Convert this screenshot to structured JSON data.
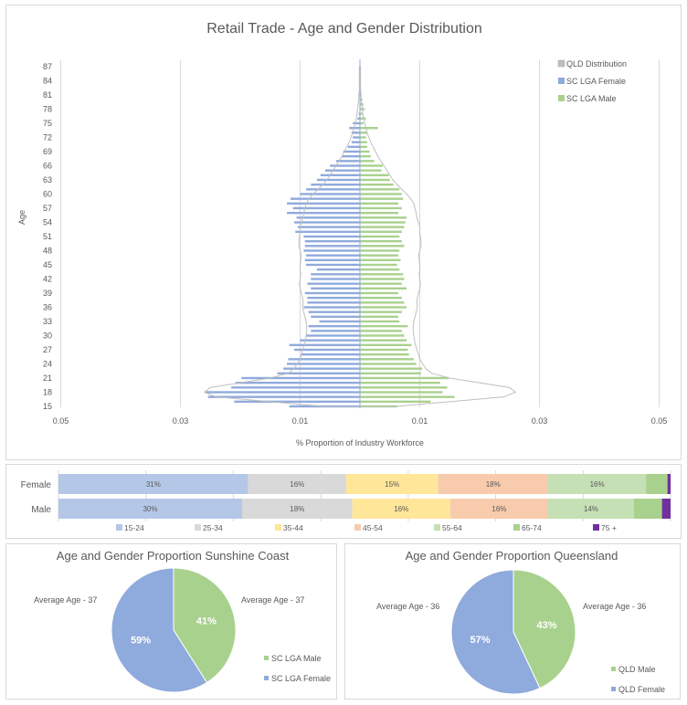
{
  "chart_data": [
    {
      "type": "bar",
      "subtype": "population-pyramid",
      "title": "Retail Trade - Age and Gender Distribution",
      "xlabel": "% Proportion of Industry Workforce",
      "ylabel": "Age",
      "x_tick_labels": [
        "0.05",
        "0.03",
        "0.01",
        "0.01",
        "0.03",
        "0.05"
      ],
      "x_ticks": [
        -0.05,
        -0.03,
        -0.01,
        0.01,
        0.03,
        0.05
      ],
      "xlim": [
        -0.05,
        0.05
      ],
      "y_tick_labels": [
        "15",
        "18",
        "21",
        "24",
        "27",
        "30",
        "33",
        "36",
        "39",
        "42",
        "45",
        "48",
        "51",
        "54",
        "57",
        "60",
        "63",
        "66",
        "69",
        "72",
        "75",
        "78",
        "81",
        "84",
        "87"
      ],
      "legend": [
        {
          "label": "QLD Distribution",
          "color": "#bfbfbf"
        },
        {
          "label": "SC LGA Female",
          "color": "#8faadc"
        },
        {
          "label": "SC LGA Male",
          "color": "#a9d18e"
        }
      ],
      "legend_position": "top-right",
      "ages": [
        15,
        16,
        17,
        18,
        19,
        20,
        21,
        22,
        23,
        24,
        25,
        26,
        27,
        28,
        29,
        30,
        31,
        32,
        33,
        34,
        35,
        36,
        37,
        38,
        39,
        40,
        41,
        42,
        43,
        44,
        45,
        46,
        47,
        48,
        49,
        50,
        51,
        52,
        53,
        54,
        55,
        56,
        57,
        58,
        59,
        60,
        61,
        62,
        63,
        64,
        65,
        66,
        67,
        68,
        69,
        70,
        71,
        72,
        73,
        74,
        75,
        76,
        77,
        78,
        79,
        80,
        81,
        82,
        83,
        84,
        85,
        86,
        87
      ],
      "series": [
        {
          "name": "SC LGA Female",
          "values": [
            0.0118,
            0.021,
            0.0254,
            0.0258,
            0.0215,
            0.0208,
            0.0198,
            0.0138,
            0.0128,
            0.0122,
            0.012,
            0.0098,
            0.011,
            0.0118,
            0.01,
            0.009,
            0.0082,
            0.0086,
            0.0068,
            0.0082,
            0.0086,
            0.0094,
            0.0088,
            0.0088,
            0.0092,
            0.0082,
            0.0088,
            0.0082,
            0.0082,
            0.0072,
            0.009,
            0.0092,
            0.009,
            0.0094,
            0.0092,
            0.0092,
            0.0094,
            0.0108,
            0.0104,
            0.011,
            0.0106,
            0.0122,
            0.0112,
            0.0122,
            0.0116,
            0.01,
            0.009,
            0.0082,
            0.0072,
            0.0066,
            0.0058,
            0.005,
            0.004,
            0.003,
            0.0028,
            0.002,
            0.0014,
            0.0012,
            0.0014,
            0.0018,
            0.0012,
            0.0004,
            0.0002,
            0,
            0,
            0,
            0,
            0,
            0,
            0,
            0,
            0,
            0
          ]
        },
        {
          "name": "SC LGA Male",
          "values": [
            0.0062,
            0.0118,
            0.0158,
            0.0138,
            0.0146,
            0.0134,
            0.0148,
            0.0102,
            0.0104,
            0.0094,
            0.009,
            0.0082,
            0.008,
            0.0086,
            0.0078,
            0.0074,
            0.007,
            0.008,
            0.0066,
            0.0064,
            0.007,
            0.0078,
            0.0074,
            0.007,
            0.0064,
            0.0078,
            0.007,
            0.0074,
            0.0072,
            0.0066,
            0.0062,
            0.0068,
            0.0064,
            0.0066,
            0.0074,
            0.007,
            0.0066,
            0.007,
            0.0074,
            0.0076,
            0.0078,
            0.0064,
            0.007,
            0.0064,
            0.0072,
            0.007,
            0.0066,
            0.0056,
            0.005,
            0.0048,
            0.0036,
            0.0038,
            0.0024,
            0.0018,
            0.0016,
            0.0012,
            0.0012,
            0.001,
            0.0012,
            0.003,
            0.0006,
            0.001,
            0.0004,
            0.0008,
            0.0006,
            0.0004,
            0.0002,
            0.0002,
            0,
            0,
            0,
            0,
            0
          ]
        },
        {
          "name": "QLD Distribution",
          "values": [
            0.006,
            0.015,
            0.024,
            0.026,
            0.025,
            0.02,
            0.015,
            0.012,
            0.011,
            0.0105,
            0.01,
            0.0098,
            0.0095,
            0.0093,
            0.0091,
            0.009,
            0.0089,
            0.0089,
            0.009,
            0.0092,
            0.0094,
            0.0096,
            0.0095,
            0.0096,
            0.0098,
            0.01,
            0.0101,
            0.01,
            0.0099,
            0.01,
            0.01,
            0.0099,
            0.0098,
            0.01,
            0.0102,
            0.0102,
            0.0101,
            0.01,
            0.01,
            0.0098,
            0.0095,
            0.0094,
            0.0092,
            0.009,
            0.0085,
            0.0078,
            0.007,
            0.0062,
            0.0055,
            0.005,
            0.0045,
            0.004,
            0.0035,
            0.003,
            0.0026,
            0.0022,
            0.0018,
            0.0015,
            0.0012,
            0.001,
            0.0008,
            0.0006,
            0.0005,
            0.0004,
            0.0003,
            0.0002,
            0.0002,
            0.0001,
            0.0001,
            0.0001,
            0.0001,
            0.0001,
            0.0001
          ]
        }
      ]
    },
    {
      "type": "bar",
      "subtype": "stacked-100-horizontal",
      "categories": [
        "Female",
        "Male"
      ],
      "legend": [
        {
          "label": "15-24",
          "color": "#b4c7e7"
        },
        {
          "label": "25-34",
          "color": "#d9d9d9"
        },
        {
          "label": "35-44",
          "color": "#ffe699"
        },
        {
          "label": "45-54",
          "color": "#f8cbad"
        },
        {
          "label": "55-64",
          "color": "#c5e0b4"
        },
        {
          "label": "65-74",
          "color": "#a9d18e"
        },
        {
          "label": "75 +",
          "color": "#7030a0"
        }
      ],
      "legend_position": "bottom",
      "series": [
        {
          "name": "15-24",
          "values": [
            31,
            30
          ],
          "labels": [
            "31%",
            "30%"
          ]
        },
        {
          "name": "25-34",
          "values": [
            16,
            18
          ],
          "labels": [
            "16%",
            "18%"
          ]
        },
        {
          "name": "35-44",
          "values": [
            15,
            16
          ],
          "labels": [
            "15%",
            "16%"
          ]
        },
        {
          "name": "45-54",
          "values": [
            18,
            16
          ],
          "labels": [
            "18%",
            "16%"
          ]
        },
        {
          "name": "55-64",
          "values": [
            16,
            14
          ],
          "labels": [
            "16%",
            "14%"
          ]
        },
        {
          "name": "65-74",
          "values": [
            3.5,
            4.6
          ],
          "labels": [
            "",
            ""
          ]
        },
        {
          "name": "75 +",
          "values": [
            0.5,
            1.4
          ],
          "labels": [
            "",
            ""
          ]
        }
      ]
    },
    {
      "type": "pie",
      "title": "Age and Gender Proportion Sunshine Coast",
      "slices": [
        {
          "label": "SC LGA Male",
          "value": 41,
          "display": "41%",
          "color": "#a9d18e",
          "annotation": "Average  Age - 37"
        },
        {
          "label": "SC LGA Female",
          "value": 59,
          "display": "59%",
          "color": "#8faadc",
          "annotation": "Average  Age - 37"
        }
      ],
      "legend_position": "right"
    },
    {
      "type": "pie",
      "title": "Age and Gender Proportion Queensland",
      "slices": [
        {
          "label": "QLD Male",
          "value": 43,
          "display": "43%",
          "color": "#a9d18e",
          "annotation": "Average  Age - 36"
        },
        {
          "label": "QLD Female",
          "value": 57,
          "display": "57%",
          "color": "#8faadc",
          "annotation": "Average  Age - 36"
        }
      ],
      "legend_position": "right"
    }
  ]
}
